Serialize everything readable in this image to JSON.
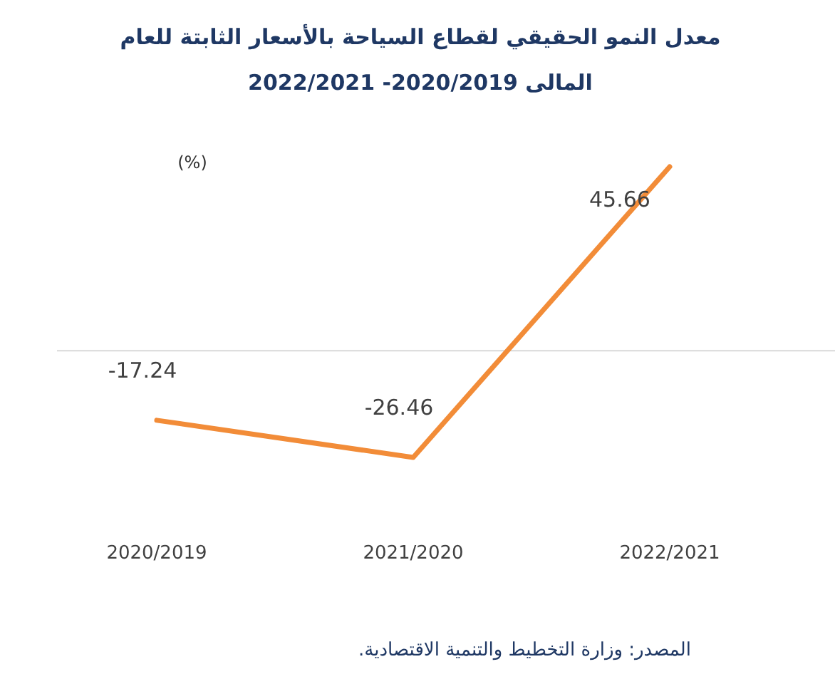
{
  "chart_data": {
    "type": "line",
    "title": "معدل النمو الحقيقي لقطاع السياحة بالأسعار الثابتة للعام المالى 2020/2019- 2022/2021",
    "ylabel": "(%)",
    "categories": [
      "2020/2019",
      "2021/2020",
      "2022/2021"
    ],
    "series": [
      {
        "color": "#f28c38",
        "values": [
          -17.24,
          -26.46,
          45.66
        ]
      }
    ],
    "data_labels": true,
    "ref_lines": [
      {
        "axis": "y",
        "value": 0,
        "color": "#d9d9d9"
      }
    ],
    "marker": "none",
    "line_style": "solid",
    "annotations": [
      "المصدر: وزارة التخطيط والتنمية الاقتصادية."
    ]
  }
}
